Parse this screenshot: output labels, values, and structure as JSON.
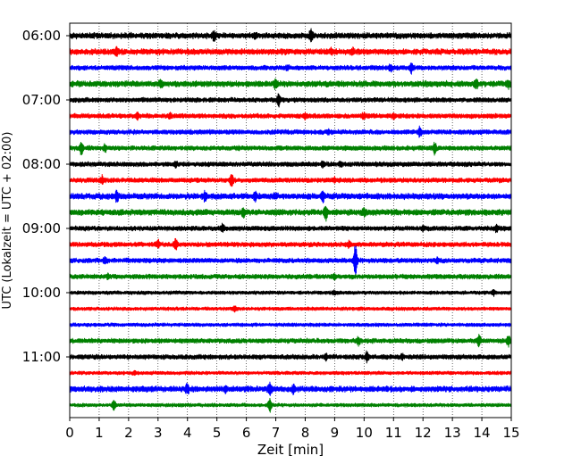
{
  "chart_data": {
    "type": "line",
    "title": "",
    "xlabel": "Zeit  [min]",
    "ylabel": "UTC (Lokalzeit = UTC + 02:00)",
    "xlim": [
      0,
      15
    ],
    "x_ticks": [
      0,
      1,
      2,
      3,
      4,
      5,
      6,
      7,
      8,
      9,
      10,
      11,
      12,
      13,
      14,
      15
    ],
    "y_tick_labels": [
      "06:00",
      "07:00",
      "08:00",
      "09:00",
      "10:00",
      "11:00"
    ],
    "grid": "vertical dotted lines at every minute",
    "legend": "none",
    "colors": [
      "#000000",
      "#ff0000",
      "#0000ff",
      "#008000"
    ],
    "series": [
      {
        "start": "06:00",
        "color": "#000000",
        "amplitude": 0.25,
        "events": [
          [
            4.9,
            0.45
          ],
          [
            8.2,
            0.6
          ],
          [
            6.3,
            0.25
          ]
        ]
      },
      {
        "start": "06:15",
        "color": "#ff0000",
        "amplitude": 0.25,
        "events": [
          [
            1.6,
            0.45
          ],
          [
            8.9,
            0.2
          ],
          [
            9.6,
            0.2
          ]
        ]
      },
      {
        "start": "06:30",
        "color": "#0000ff",
        "amplitude": 0.2,
        "events": [
          [
            10.9,
            0.3
          ],
          [
            11.6,
            0.5
          ],
          [
            7.4,
            0.2
          ]
        ]
      },
      {
        "start": "06:45",
        "color": "#008000",
        "amplitude": 0.25,
        "events": [
          [
            3.1,
            0.35
          ],
          [
            7.0,
            0.4
          ],
          [
            13.8,
            0.45
          ],
          [
            14.9,
            0.3
          ]
        ]
      },
      {
        "start": "07:00",
        "color": "#000000",
        "amplitude": 0.2,
        "events": [
          [
            7.1,
            0.6
          ]
        ]
      },
      {
        "start": "07:15",
        "color": "#ff0000",
        "amplitude": 0.2,
        "events": [
          [
            2.3,
            0.35
          ],
          [
            3.4,
            0.3
          ],
          [
            8.0,
            0.2
          ],
          [
            10.0,
            0.3
          ],
          [
            11.0,
            0.25
          ]
        ]
      },
      {
        "start": "07:30",
        "color": "#0000ff",
        "amplitude": 0.2,
        "events": [
          [
            11.9,
            0.5
          ],
          [
            8.8,
            0.2
          ]
        ]
      },
      {
        "start": "07:45",
        "color": "#008000",
        "amplitude": 0.2,
        "events": [
          [
            0.4,
            0.65
          ],
          [
            1.2,
            0.3
          ],
          [
            12.4,
            0.55
          ]
        ]
      },
      {
        "start": "08:00",
        "color": "#000000",
        "amplitude": 0.2,
        "events": [
          [
            3.6,
            0.25
          ],
          [
            8.6,
            0.25
          ],
          [
            9.2,
            0.2
          ]
        ]
      },
      {
        "start": "08:15",
        "color": "#ff0000",
        "amplitude": 0.2,
        "events": [
          [
            1.1,
            0.4
          ],
          [
            5.5,
            0.65
          ],
          [
            9.0,
            0.2
          ]
        ]
      },
      {
        "start": "08:30",
        "color": "#0000ff",
        "amplitude": 0.25,
        "events": [
          [
            1.6,
            0.45
          ],
          [
            4.6,
            0.5
          ],
          [
            6.3,
            0.4
          ],
          [
            8.6,
            0.55
          ],
          [
            7.0,
            0.25
          ]
        ]
      },
      {
        "start": "08:45",
        "color": "#008000",
        "amplitude": 0.25,
        "events": [
          [
            5.9,
            0.35
          ],
          [
            8.7,
            0.75
          ],
          [
            10.0,
            0.3
          ]
        ]
      },
      {
        "start": "09:00",
        "color": "#000000",
        "amplitude": 0.2,
        "events": [
          [
            5.2,
            0.4
          ],
          [
            14.5,
            0.35
          ],
          [
            12.0,
            0.2
          ]
        ]
      },
      {
        "start": "09:15",
        "color": "#ff0000",
        "amplitude": 0.2,
        "events": [
          [
            3.0,
            0.35
          ],
          [
            3.6,
            0.5
          ],
          [
            9.5,
            0.3
          ]
        ]
      },
      {
        "start": "09:30",
        "color": "#0000ff",
        "amplitude": 0.2,
        "events": [
          [
            9.7,
            1.7
          ],
          [
            1.2,
            0.3
          ],
          [
            12.5,
            0.2
          ]
        ]
      },
      {
        "start": "09:45",
        "color": "#008000",
        "amplitude": 0.2,
        "events": [
          [
            1.3,
            0.25
          ],
          [
            9.0,
            0.2
          ]
        ]
      },
      {
        "start": "10:00",
        "color": "#000000",
        "amplitude": 0.15,
        "events": [
          [
            9.0,
            0.2
          ],
          [
            14.4,
            0.25
          ]
        ]
      },
      {
        "start": "10:15",
        "color": "#ff0000",
        "amplitude": 0.15,
        "events": [
          [
            5.6,
            0.3
          ]
        ]
      },
      {
        "start": "10:30",
        "color": "#0000ff",
        "amplitude": 0.15,
        "events": []
      },
      {
        "start": "10:45",
        "color": "#008000",
        "amplitude": 0.2,
        "events": [
          [
            9.8,
            0.35
          ],
          [
            13.9,
            0.5
          ],
          [
            14.9,
            0.5
          ]
        ]
      },
      {
        "start": "11:00",
        "color": "#000000",
        "amplitude": 0.2,
        "events": [
          [
            10.1,
            0.45
          ],
          [
            8.7,
            0.25
          ],
          [
            11.3,
            0.2
          ]
        ]
      },
      {
        "start": "11:15",
        "color": "#ff0000",
        "amplitude": 0.15,
        "events": [
          [
            2.2,
            0.2
          ]
        ]
      },
      {
        "start": "11:30",
        "color": "#0000ff",
        "amplitude": 0.25,
        "events": [
          [
            4.0,
            0.4
          ],
          [
            6.8,
            0.55
          ],
          [
            5.3,
            0.2
          ],
          [
            7.6,
            0.3
          ]
        ]
      },
      {
        "start": "11:45",
        "color": "#008000",
        "amplitude": 0.15,
        "events": [
          [
            1.5,
            0.5
          ],
          [
            6.8,
            0.65
          ]
        ]
      }
    ]
  }
}
